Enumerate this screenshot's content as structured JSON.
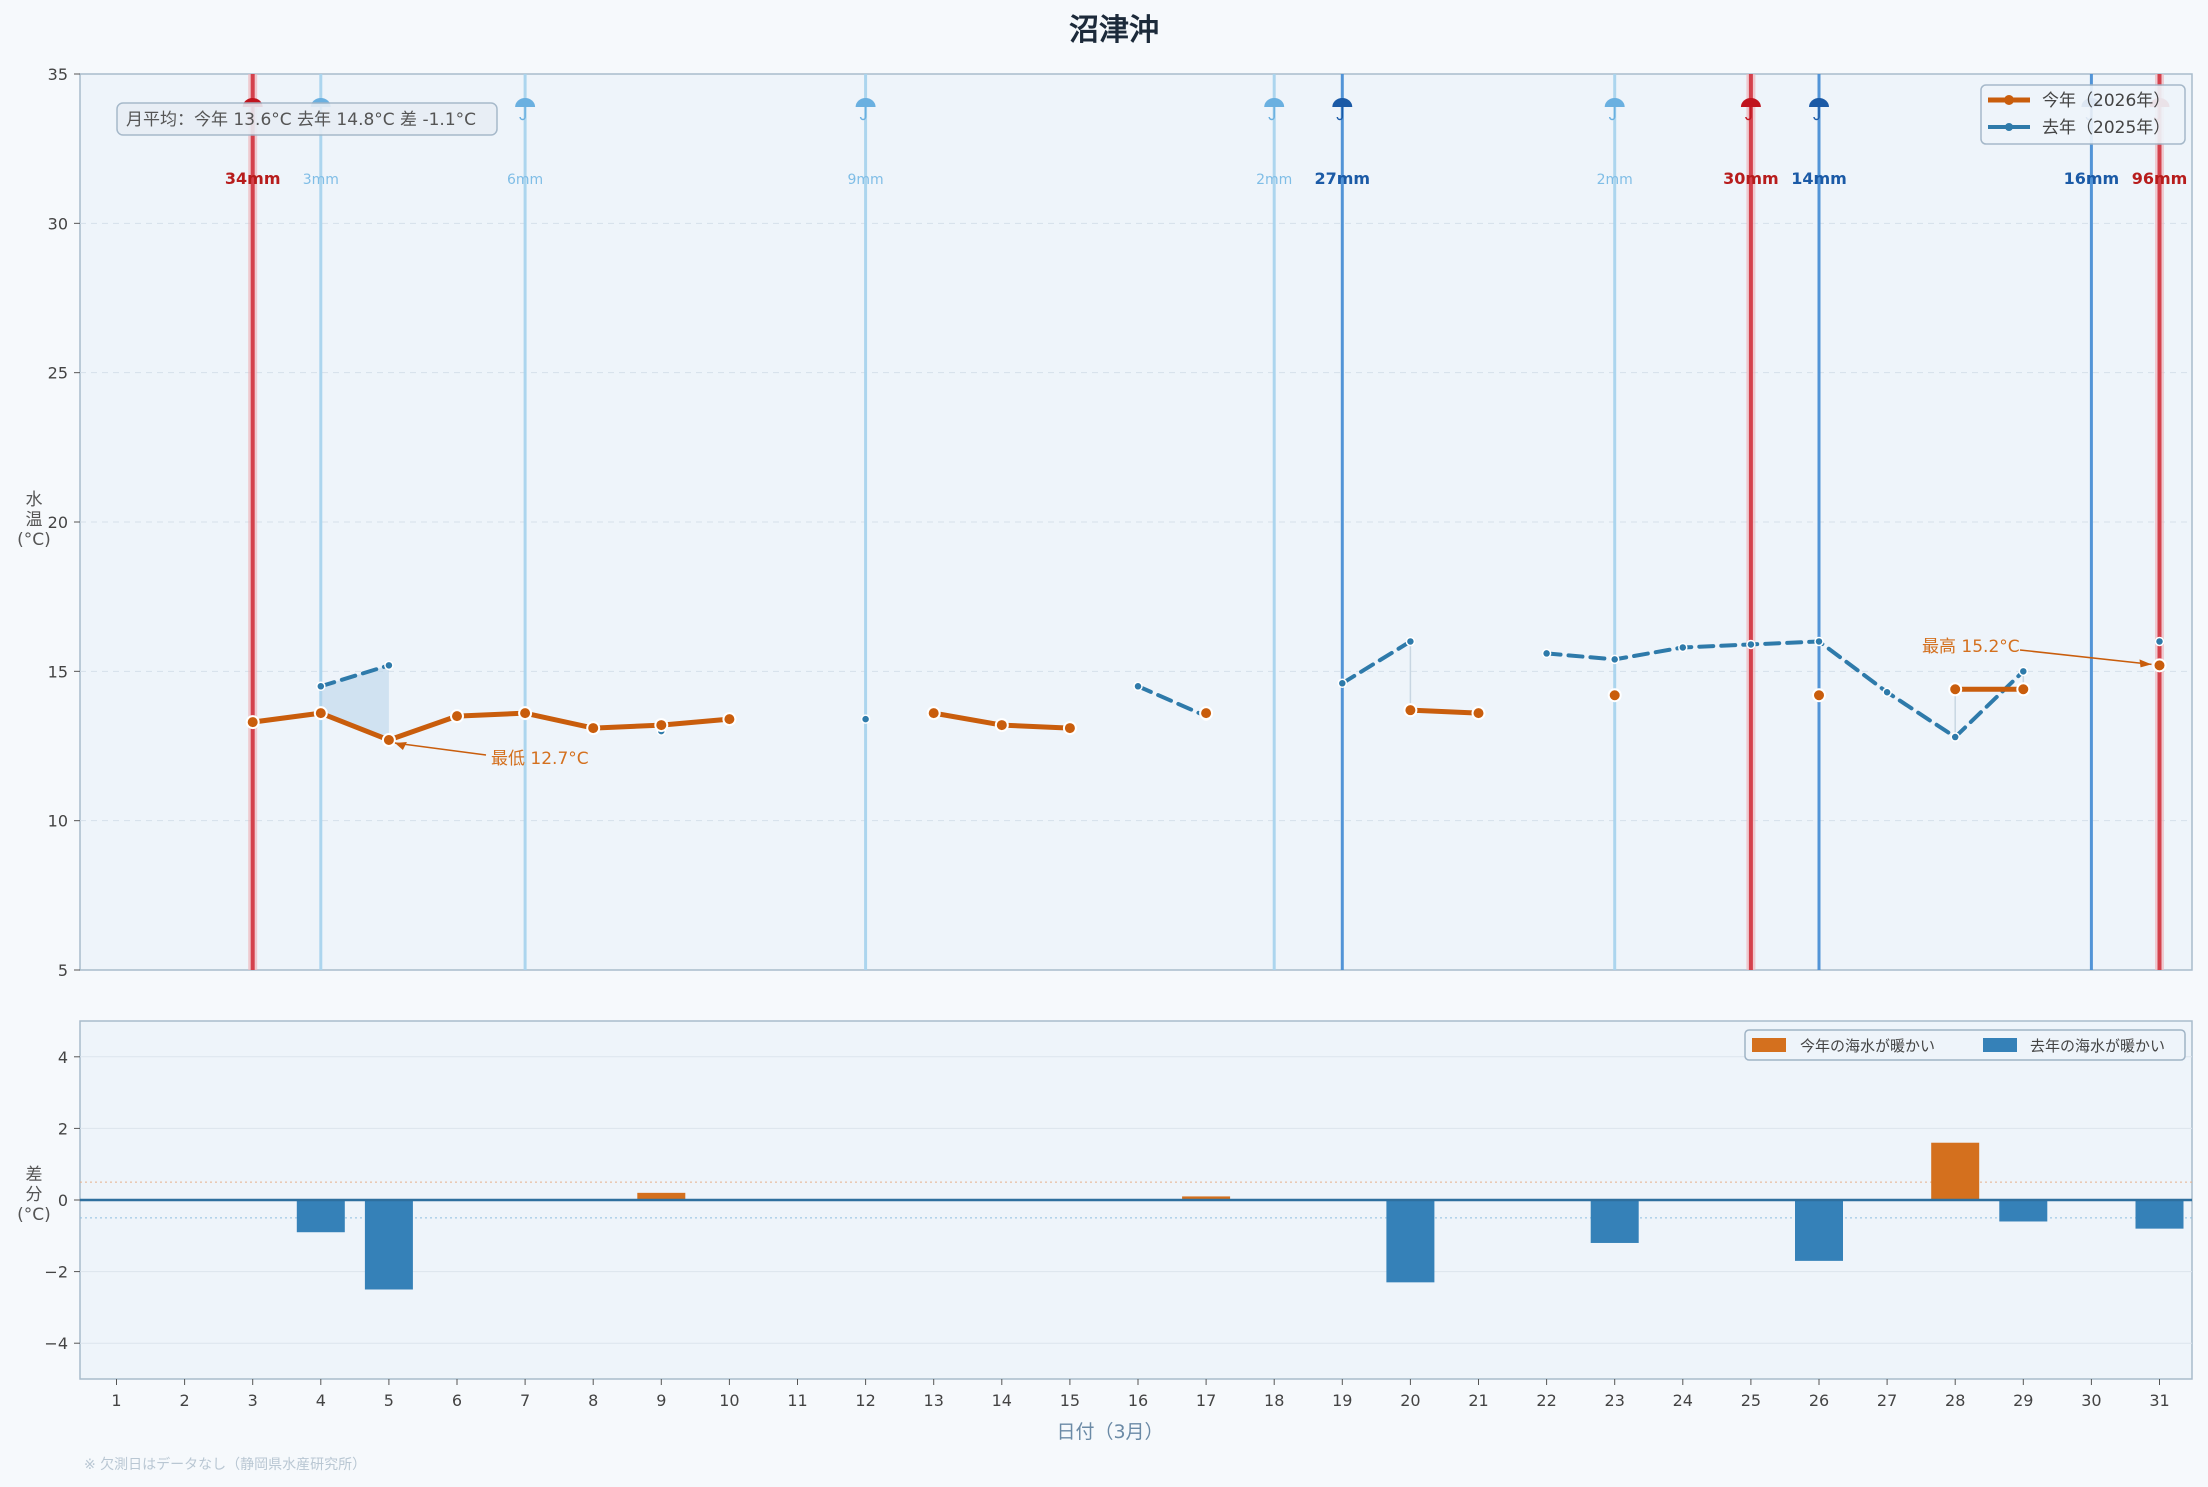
{
  "chart_data": [
    {
      "type": "line",
      "title": "沼津沖",
      "ylabel": "水温\n(°C)",
      "ylim": [
        5,
        35
      ],
      "yticks": [
        5,
        10,
        15,
        20,
        25,
        30,
        35
      ],
      "x": [
        1,
        2,
        3,
        4,
        5,
        6,
        7,
        8,
        9,
        10,
        11,
        12,
        13,
        14,
        15,
        16,
        17,
        18,
        19,
        20,
        21,
        22,
        23,
        24,
        25,
        26,
        27,
        28,
        29,
        30,
        31
      ],
      "series": [
        {
          "name": "今年（2026年）",
          "color": "#c95d0c",
          "values": [
            null,
            null,
            13.3,
            13.6,
            12.7,
            13.5,
            13.6,
            13.1,
            13.2,
            13.4,
            null,
            null,
            13.6,
            13.2,
            13.1,
            null,
            13.6,
            null,
            null,
            13.7,
            13.6,
            null,
            14.2,
            null,
            null,
            14.2,
            null,
            14.4,
            14.4,
            null,
            15.2
          ]
        },
        {
          "name": "去年（2025年）",
          "color": "#2e7aaa",
          "values": [
            null,
            null,
            null,
            14.5,
            15.2,
            null,
            null,
            null,
            13.0,
            null,
            null,
            13.4,
            null,
            null,
            null,
            14.5,
            13.5,
            null,
            14.6,
            16.0,
            null,
            15.6,
            15.4,
            15.8,
            15.9,
            16.0,
            14.3,
            12.8,
            15.0,
            null,
            16.0
          ]
        }
      ],
      "rain": [
        {
          "day": 3,
          "mm": "34mm",
          "year": "2026",
          "heavy": true
        },
        {
          "day": 4,
          "mm": "3mm",
          "year": "2025",
          "heavy": false
        },
        {
          "day": 7,
          "mm": "6mm",
          "year": "2025",
          "heavy": false
        },
        {
          "day": 12,
          "mm": "9mm",
          "year": "2025",
          "heavy": false
        },
        {
          "day": 18,
          "mm": "2mm",
          "year": "2025",
          "heavy": false
        },
        {
          "day": 19,
          "mm": "27mm",
          "year": "2025",
          "heavy": true
        },
        {
          "day": 23,
          "mm": "2mm",
          "year": "2025",
          "heavy": false
        },
        {
          "day": 25,
          "mm": "30mm",
          "year": "2026",
          "heavy": true
        },
        {
          "day": 26,
          "mm": "14mm",
          "year": "2025",
          "heavy": true
        },
        {
          "day": 30,
          "mm": "16mm",
          "year": "2025",
          "heavy": true
        },
        {
          "day": 31,
          "mm": "96mm",
          "year": "2026",
          "heavy": true
        }
      ],
      "legend": [
        "今年（2026年）",
        "去年（2025年）"
      ],
      "legend_position": "top-right",
      "info_box": "月平均：今年 13.6°C  去年 14.8°C  差 -1.1°C",
      "annotations": [
        {
          "text": "最低 12.7°C",
          "day": 5,
          "value": 12.7
        },
        {
          "text": "最高 15.2°C",
          "day": 31,
          "value": 15.2
        }
      ],
      "grid": true
    },
    {
      "type": "bar",
      "ylabel": "差\n分\n(°C)",
      "ylim": [
        -5,
        5
      ],
      "yticks": [
        4,
        2,
        0,
        -2,
        -4
      ],
      "ytick_labels": [
        "4",
        "2",
        "0",
        "−2",
        "−4"
      ],
      "x": [
        1,
        2,
        3,
        4,
        5,
        6,
        7,
        8,
        9,
        10,
        11,
        12,
        13,
        14,
        15,
        16,
        17,
        18,
        19,
        20,
        21,
        22,
        23,
        24,
        25,
        26,
        27,
        28,
        29,
        30,
        31
      ],
      "values": [
        null,
        null,
        null,
        -0.9,
        -2.5,
        null,
        null,
        null,
        0.2,
        null,
        null,
        null,
        null,
        null,
        null,
        null,
        0.1,
        null,
        null,
        -2.3,
        null,
        null,
        -1.2,
        null,
        null,
        -1.7,
        null,
        1.6,
        -0.6,
        null,
        -0.8
      ],
      "legend": [
        "今年の海水が暖かい",
        "去年の海水が暖かい"
      ],
      "legend_position": "top-right",
      "colors": {
        "warm_this_year": "#d4701e",
        "warm_last_year": "#3581b8"
      },
      "xlabel": "日付（3月）",
      "grid": true
    }
  ],
  "footnote": "※ 欠測日はデータなし（静岡県水産研究所）"
}
